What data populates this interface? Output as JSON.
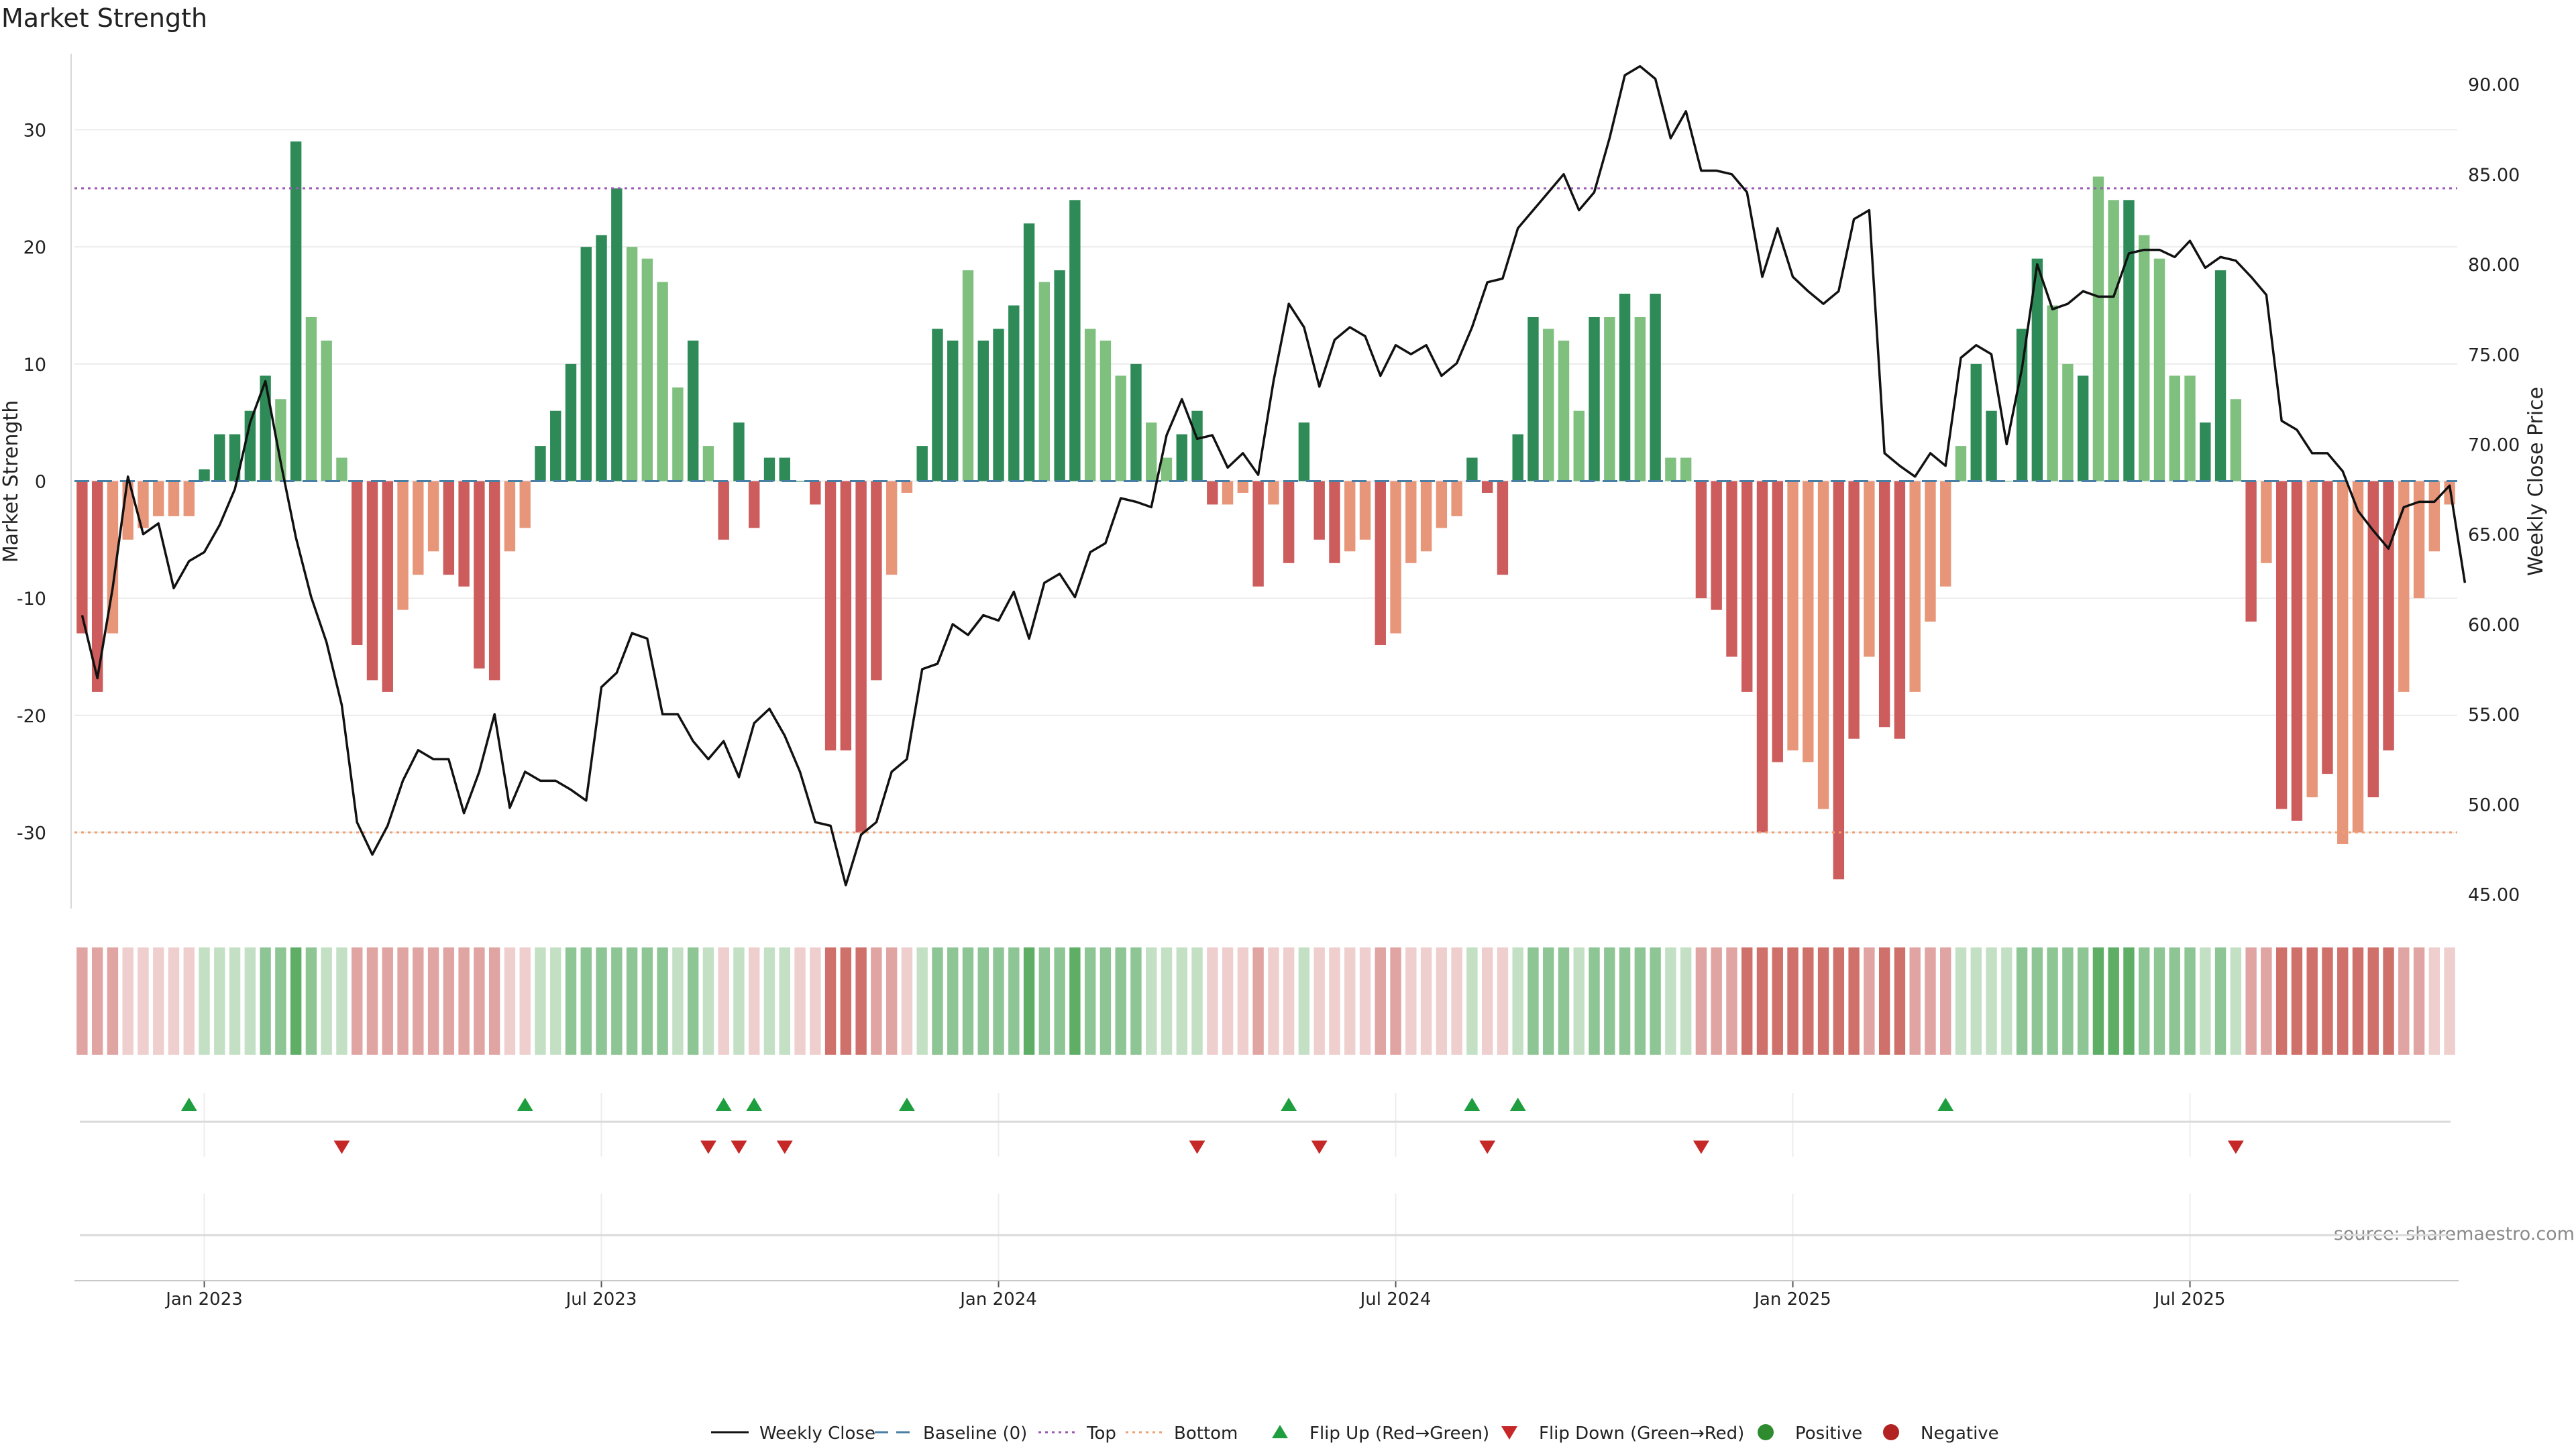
{
  "chart_data": {
    "type": "bar",
    "title": "Market Strength",
    "ylabel": "Market Strength",
    "ylabel_right": "Weekly Close Price",
    "source": "source: sharemaestro.com",
    "ylim": [
      -36.5,
      36.5
    ],
    "ylim_right": [
      44.2,
      91.7
    ],
    "yticks": [
      -30,
      -20,
      -10,
      0,
      10,
      20,
      30
    ],
    "yticks_right": [
      "45.00",
      "50.00",
      "55.00",
      "60.00",
      "65.00",
      "70.00",
      "75.00",
      "80.00",
      "85.00",
      "90.00"
    ],
    "xticks": [
      "Jan 2023",
      "Jul 2023",
      "Jan 2024",
      "Jul 2024",
      "Jan 2025",
      "Jul 2025"
    ],
    "grid": true,
    "legend_position": "bottom",
    "reference_lines": {
      "top": 25,
      "bottom": -30,
      "baseline": 0
    },
    "colors": {
      "positive_dark": "#2e8b57",
      "positive_light": "#7fc07f",
      "negative_dark": "#cd5c5c",
      "negative_light": "#e8967a",
      "close_line": "#111111",
      "top_line": "#9b59b6",
      "bottom_line": "#f0a070",
      "baseline": "#4a7fa5",
      "flip_up": "#1f9e3f",
      "flip_down": "#c62828",
      "positive_dot": "#2e8b2e",
      "negative_dot": "#b22222"
    },
    "legend": [
      "Weekly Close",
      "Baseline (0)",
      "Top",
      "Bottom",
      "Flip Up (Red→Green)",
      "Flip Down (Green→Red)",
      "Positive",
      "Negative"
    ],
    "series": [
      {
        "name": "Market Strength",
        "values": [
          -13,
          -18,
          -13,
          -5,
          -4,
          -3,
          -3,
          -3,
          1,
          4,
          4,
          6,
          9,
          7,
          29,
          14,
          12,
          2,
          -14,
          -17,
          -18,
          -11,
          -8,
          -6,
          -8,
          -9,
          -16,
          -17,
          -6,
          -4,
          3,
          6,
          10,
          20,
          21,
          25,
          20,
          19,
          17,
          8,
          12,
          3,
          -5,
          5,
          -4,
          2,
          2,
          0,
          -2,
          -23,
          -23,
          -30,
          -17,
          -8,
          -1,
          3,
          13,
          12,
          18,
          12,
          13,
          15,
          22,
          17,
          18,
          24,
          13,
          12,
          9,
          10,
          5,
          2,
          4,
          6,
          -2,
          -2,
          -1,
          -9,
          -2,
          -7,
          5,
          -5,
          -7,
          -6,
          -5,
          -14,
          -13,
          -7,
          -6,
          -4,
          -3,
          2,
          -1,
          -8,
          4,
          14,
          13,
          12,
          6,
          14,
          14,
          16,
          14,
          16,
          2,
          2,
          -10,
          -11,
          -15,
          -18,
          -30,
          -24,
          -23,
          -24,
          -28,
          -34,
          -22,
          -15,
          -21,
          -22,
          -18,
          -12,
          -9,
          3,
          10,
          6,
          0,
          13,
          19,
          15,
          10,
          9,
          26,
          24,
          24,
          21,
          19,
          9,
          9,
          5,
          18,
          7,
          -12,
          -7,
          -28,
          -29,
          -27,
          -25,
          -31,
          -30,
          -27,
          -23,
          -18,
          -10,
          -6,
          -2
        ],
        "shade": [
          "d",
          "d",
          "l",
          "l",
          "l",
          "l",
          "l",
          "l",
          "d",
          "d",
          "d",
          "d",
          "d",
          "l",
          "d",
          "l",
          "l",
          "l",
          "d",
          "d",
          "d",
          "l",
          "l",
          "l",
          "d",
          "d",
          "d",
          "d",
          "l",
          "l",
          "d",
          "d",
          "d",
          "d",
          "d",
          "d",
          "l",
          "l",
          "l",
          "l",
          "d",
          "l",
          "d",
          "d",
          "d",
          "d",
          "d",
          "d",
          "d",
          "d",
          "d",
          "d",
          "d",
          "l",
          "l",
          "d",
          "d",
          "d",
          "l",
          "d",
          "d",
          "d",
          "d",
          "l",
          "d",
          "d",
          "l",
          "l",
          "l",
          "d",
          "l",
          "l",
          "d",
          "d",
          "d",
          "l",
          "l",
          "d",
          "l",
          "d",
          "d",
          "d",
          "d",
          "l",
          "l",
          "d",
          "l",
          "l",
          "l",
          "l",
          "l",
          "d",
          "d",
          "d",
          "d",
          "d",
          "l",
          "l",
          "l",
          "d",
          "l",
          "d",
          "l",
          "d",
          "l",
          "l",
          "d",
          "d",
          "d",
          "d",
          "d",
          "d",
          "l",
          "l",
          "l",
          "d",
          "d",
          "l",
          "d",
          "d",
          "l",
          "l",
          "l",
          "l",
          "d",
          "d",
          "l",
          "d",
          "d",
          "l",
          "l",
          "d",
          "l",
          "l",
          "d",
          "l",
          "l",
          "l",
          "l",
          "d",
          "d",
          "l",
          "d",
          "l",
          "d",
          "d",
          "l",
          "d",
          "l",
          "l",
          "d",
          "d",
          "l",
          "l",
          "l",
          "l",
          "l",
          "d"
        ]
      },
      {
        "name": "Weekly Close",
        "values": [
          60.5,
          57,
          62,
          68.2,
          65,
          65.6,
          62,
          63.5,
          64,
          65.5,
          67.5,
          71.2,
          73.5,
          69,
          64.8,
          61.5,
          59,
          55.5,
          49,
          47.2,
          48.8,
          51.3,
          53,
          52.5,
          52.5,
          49.5,
          51.8,
          55,
          49.8,
          51.8,
          51.3,
          51.3,
          50.8,
          50.2,
          56.5,
          57.3,
          59.5,
          59.2,
          55,
          55,
          53.5,
          52.5,
          53.5,
          51.5,
          54.5,
          55.3,
          53.8,
          51.8,
          49,
          48.8,
          45.5,
          48.3,
          49,
          51.8,
          52.5,
          57.5,
          57.8,
          60,
          59.4,
          60.5,
          60.2,
          61.8,
          59.2,
          62.3,
          62.8,
          61.5,
          64,
          64.5,
          67,
          66.8,
          66.5,
          70.5,
          72.5,
          70.3,
          70.5,
          68.7,
          69.5,
          68.3,
          73.5,
          77.8,
          76.5,
          73.2,
          75.8,
          76.5,
          76,
          73.8,
          75.5,
          75,
          75.5,
          73.8,
          74.5,
          76.5,
          79,
          79.2,
          82,
          83,
          84,
          85,
          83,
          84,
          87,
          90.5,
          91,
          90.3,
          87,
          88.5,
          85.2,
          85.2,
          85,
          84,
          79.3,
          82,
          79.3,
          78.5,
          77.8,
          78.5,
          82.5,
          83,
          69.5,
          68.8,
          68.2,
          69.5,
          68.8,
          74.8,
          75.5,
          75,
          70,
          74.2,
          80,
          77.5,
          77.8,
          78.5,
          78.2,
          78.2,
          80.6,
          80.8,
          80.8,
          80.4,
          81.3,
          79.8,
          80.4,
          80.2,
          79.3,
          78.3,
          71.3,
          70.8,
          69.5,
          69.5,
          68.5,
          66.3,
          65.2,
          64.2,
          66.5,
          66.8,
          66.8,
          67.7,
          62.3
        ]
      }
    ],
    "strength_strip": {
      "levels": [
        -2,
        -2,
        -2,
        -1,
        -1,
        -1,
        -1,
        -1,
        1,
        1,
        1,
        1,
        2,
        2,
        3,
        2,
        1,
        1,
        -2,
        -2,
        -2,
        -2,
        -2,
        -2,
        -2,
        -2,
        -2,
        -2,
        -1,
        -1,
        1,
        1,
        2,
        2,
        2,
        2,
        2,
        2,
        2,
        1,
        2,
        1,
        -1,
        1,
        -1,
        1,
        1,
        -1,
        -1,
        -3,
        -3,
        -3,
        -2,
        -2,
        -1,
        1,
        2,
        2,
        2,
        2,
        2,
        2,
        3,
        2,
        2,
        3,
        2,
        2,
        2,
        2,
        1,
        1,
        1,
        1,
        -1,
        -1,
        -1,
        -2,
        -1,
        -1,
        1,
        -1,
        -1,
        -1,
        -1,
        -2,
        -2,
        -1,
        -1,
        -1,
        -1,
        1,
        -1,
        -1,
        1,
        2,
        2,
        2,
        1,
        2,
        2,
        2,
        2,
        2,
        1,
        1,
        -2,
        -2,
        -2,
        -3,
        -3,
        -3,
        -3,
        -3,
        -3,
        -3,
        -3,
        -2,
        -3,
        -3,
        -2,
        -2,
        -2,
        1,
        1,
        1,
        1,
        2,
        2,
        2,
        2,
        2,
        3,
        3,
        3,
        2,
        2,
        2,
        2,
        1,
        2,
        1,
        -2,
        -2,
        -3,
        -3,
        -3,
        -3,
        -3,
        -3,
        -3,
        -3,
        -2,
        -2,
        -1,
        -1
      ]
    },
    "flips": {
      "up": [
        7,
        29,
        42,
        44,
        54,
        79,
        91,
        94,
        122
      ],
      "down": [
        17,
        41,
        43,
        46,
        73,
        81,
        92,
        106,
        141
      ]
    }
  }
}
